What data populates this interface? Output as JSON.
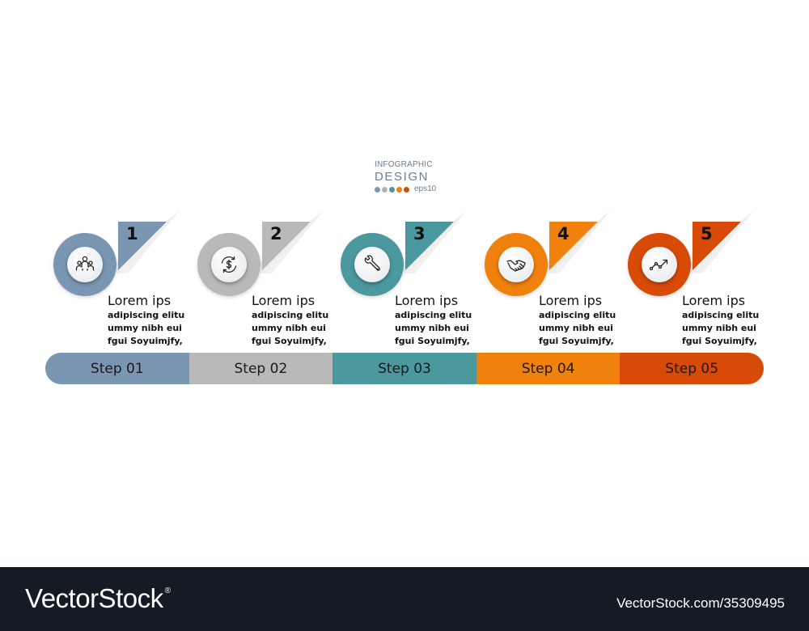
{
  "header": {
    "line1": "INFOGRAPHIC",
    "line2": "DESIGN",
    "eps": "eps10",
    "dot_colors": [
      "#7b96b2",
      "#b3b3b3",
      "#4b989f",
      "#f0810c",
      "#d84a08"
    ]
  },
  "steps": [
    {
      "number": "1",
      "title": "Lorem ips",
      "lines": [
        "adipiscing elitu",
        "ummy nibh eui",
        "fgui Soyuimjfy,"
      ],
      "bar_label": "Step 01",
      "color": "#7b96b2",
      "icon": "people-group-icon"
    },
    {
      "number": "2",
      "title": "Lorem ips",
      "lines": [
        "adipiscing elitu",
        "ummy nibh eui",
        "fgui Soyuimjfy,"
      ],
      "bar_label": "Step 02",
      "color": "#b9b9b9",
      "icon": "money-cycle-icon"
    },
    {
      "number": "3",
      "title": "Lorem ips",
      "lines": [
        "adipiscing elitu",
        "ummy nibh eui",
        "fgui Soyuimjfy,"
      ],
      "bar_label": "Step 03",
      "color": "#4b989f",
      "icon": "wrench-icon"
    },
    {
      "number": "4",
      "title": "Lorem ips",
      "lines": [
        "adipiscing elitu",
        "ummy nibh eui",
        "fgui Soyuimjfy,"
      ],
      "bar_label": "Step 04",
      "color": "#f0810c",
      "icon": "handshake-icon"
    },
    {
      "number": "5",
      "title": "Lorem ips",
      "lines": [
        "adipiscing elitu",
        "ummy nibh eui",
        "fgui Soyuimjfy,"
      ],
      "bar_label": "Step 05",
      "color": "#d84a08",
      "icon": "line-graph-icon"
    }
  ],
  "footer": {
    "brand": "VectorStock",
    "registered": "®",
    "image_id": "VectorStock.com/35309495"
  }
}
